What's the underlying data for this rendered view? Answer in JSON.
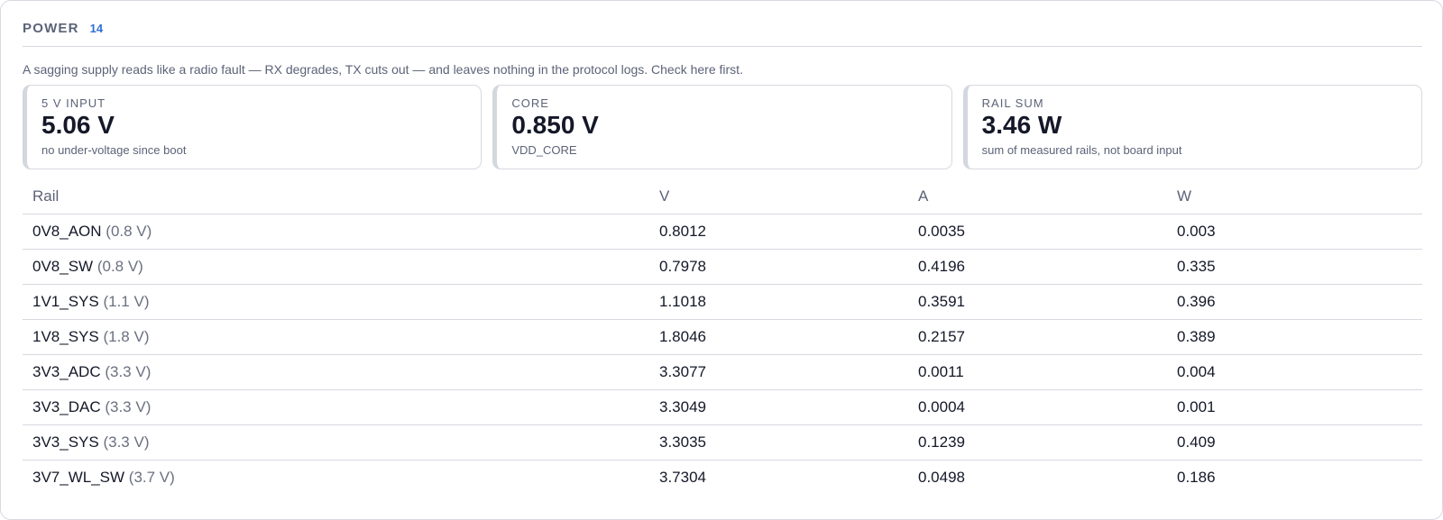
{
  "header": {
    "title": "POWER",
    "count": "14"
  },
  "description": "A sagging supply reads like a radio fault — RX degrades, TX cuts out — and leaves nothing in the protocol logs. Check here first.",
  "cards": [
    {
      "label": "5 V INPUT",
      "value": "5.06 V",
      "sub": "no under-voltage since boot"
    },
    {
      "label": "CORE",
      "value": "0.850 V",
      "sub": "VDD_CORE"
    },
    {
      "label": "RAIL SUM",
      "value": "3.46 W",
      "sub": "sum of measured rails, not board input"
    }
  ],
  "table": {
    "columns": [
      "Rail",
      "V",
      "A",
      "W"
    ],
    "rows": [
      {
        "rail": "0V8_AON",
        "nominal": "(0.8 V)",
        "v": "0.8012",
        "a": "0.0035",
        "w": "0.003"
      },
      {
        "rail": "0V8_SW",
        "nominal": "(0.8 V)",
        "v": "0.7978",
        "a": "0.4196",
        "w": "0.335"
      },
      {
        "rail": "1V1_SYS",
        "nominal": "(1.1 V)",
        "v": "1.1018",
        "a": "0.3591",
        "w": "0.396"
      },
      {
        "rail": "1V8_SYS",
        "nominal": "(1.8 V)",
        "v": "1.8046",
        "a": "0.2157",
        "w": "0.389"
      },
      {
        "rail": "3V3_ADC",
        "nominal": "(3.3 V)",
        "v": "3.3077",
        "a": "0.0011",
        "w": "0.004"
      },
      {
        "rail": "3V3_DAC",
        "nominal": "(3.3 V)",
        "v": "3.3049",
        "a": "0.0004",
        "w": "0.001"
      },
      {
        "rail": "3V3_SYS",
        "nominal": "(3.3 V)",
        "v": "3.3035",
        "a": "0.1239",
        "w": "0.409"
      },
      {
        "rail": "3V7_WL_SW",
        "nominal": "(3.7 V)",
        "v": "3.7304",
        "a": "0.0498",
        "w": "0.186"
      }
    ]
  }
}
